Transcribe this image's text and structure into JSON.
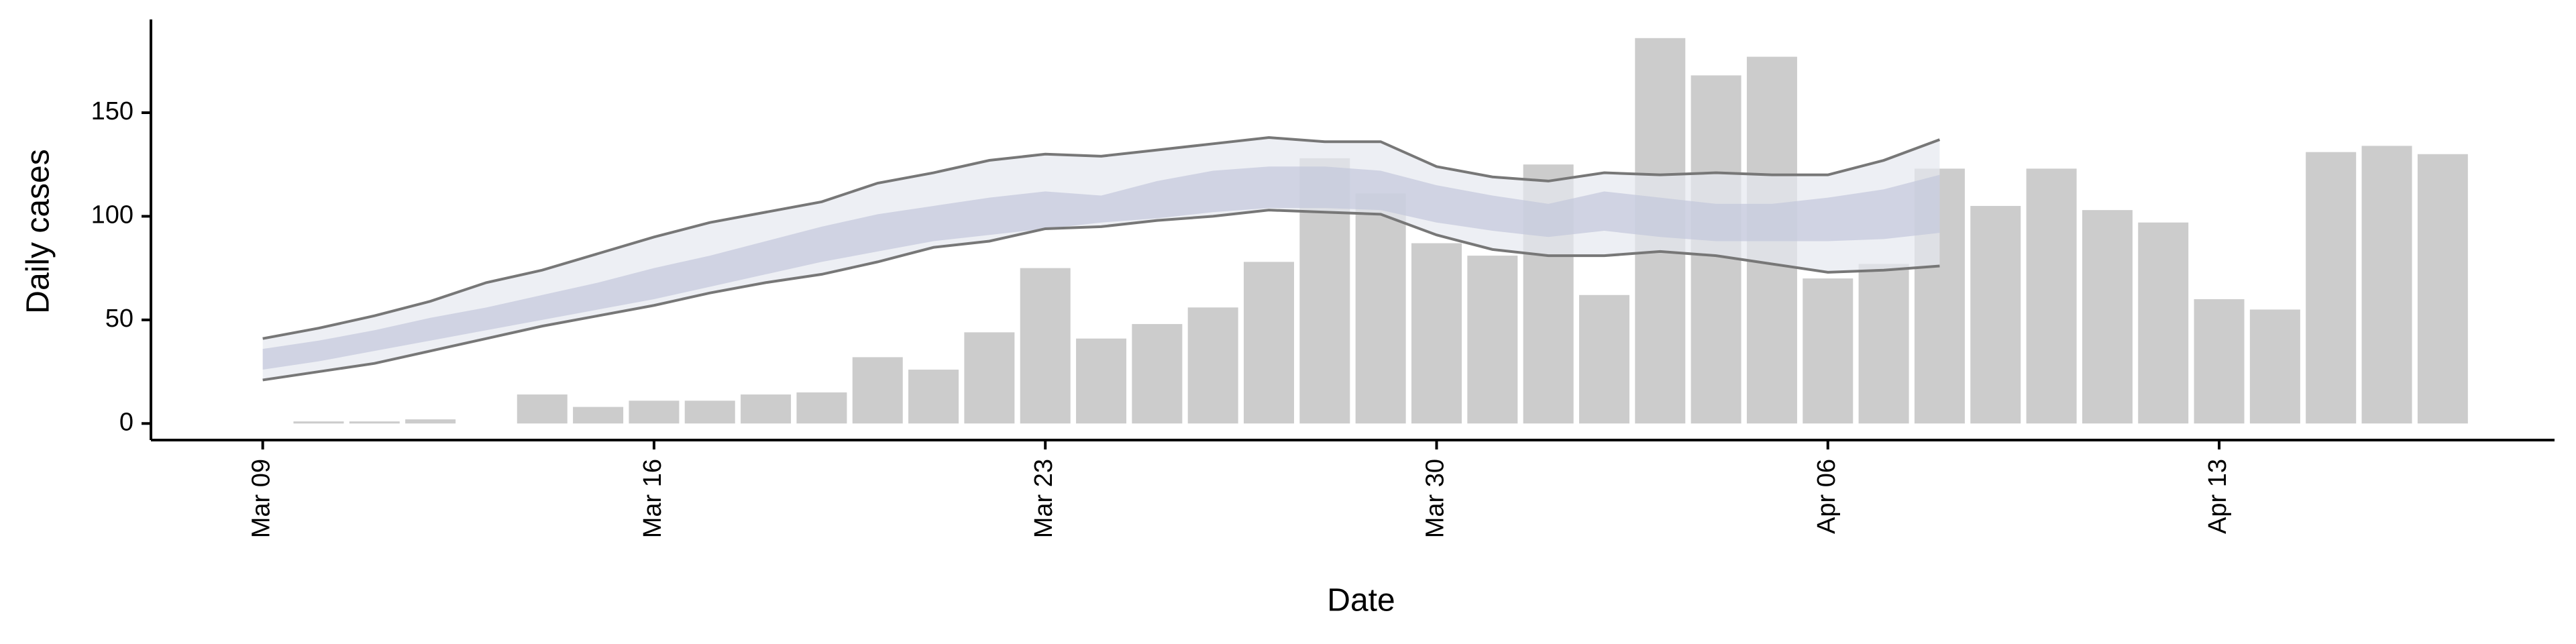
{
  "chart_data": {
    "type": "bar",
    "xlabel": "Date",
    "ylabel": "Daily cases",
    "x": [
      "Mar 10",
      "Mar 11",
      "Mar 12",
      "Mar 14",
      "Mar 15",
      "Mar 16",
      "Mar 17",
      "Mar 18",
      "Mar 19",
      "Mar 20",
      "Mar 21",
      "Mar 22",
      "Mar 23",
      "Mar 24",
      "Mar 25",
      "Mar 26",
      "Mar 27",
      "Mar 28",
      "Mar 29",
      "Mar 30",
      "Mar 31",
      "Apr 01",
      "Apr 02",
      "Apr 03",
      "Apr 04",
      "Apr 05",
      "Apr 06",
      "Apr 07",
      "Apr 08",
      "Apr 09",
      "Apr 10",
      "Apr 11",
      "Apr 12",
      "Apr 13",
      "Apr 14",
      "Apr 15",
      "Apr 16",
      "Apr 17"
    ],
    "series": [
      {
        "color": "#cccccc",
        "values": [
          1,
          1,
          2,
          14,
          8,
          11,
          11,
          14,
          15,
          32,
          26,
          44,
          75,
          41,
          48,
          56,
          78,
          128,
          111,
          87,
          81,
          125,
          62,
          186,
          168,
          177,
          70,
          77,
          123,
          105,
          123,
          103,
          97,
          60,
          55,
          131,
          134,
          130
        ]
      }
    ],
    "bands": {
      "x": [
        "Mar 09",
        "Mar 10",
        "Mar 11",
        "Mar 12",
        "Mar 13",
        "Mar 14",
        "Mar 15",
        "Mar 16",
        "Mar 17",
        "Mar 18",
        "Mar 19",
        "Mar 20",
        "Mar 21",
        "Mar 22",
        "Mar 23",
        "Mar 24",
        "Mar 25",
        "Mar 26",
        "Mar 27",
        "Mar 28",
        "Mar 29",
        "Mar 30",
        "Mar 31",
        "Apr 01",
        "Apr 02",
        "Apr 03",
        "Apr 04",
        "Apr 05",
        "Apr 06",
        "Apr 07",
        "Apr 08"
      ],
      "outer": {
        "color": "#e6e8f0",
        "line_color": "#777777",
        "lower": [
          21,
          25,
          29,
          35,
          41,
          47,
          52,
          57,
          63,
          68,
          72,
          78,
          85,
          88,
          94,
          95,
          98,
          100,
          103,
          102,
          101,
          91,
          84,
          81,
          81,
          83,
          81,
          77,
          73,
          74,
          76
        ],
        "upper": [
          41,
          46,
          52,
          59,
          68,
          74,
          82,
          90,
          97,
          102,
          107,
          116,
          121,
          127,
          130,
          129,
          132,
          135,
          138,
          136,
          136,
          124,
          119,
          117,
          121,
          120,
          121,
          120,
          120,
          127,
          137
        ]
      },
      "inner": {
        "color": "#c3c8dc",
        "lower": [
          26,
          30,
          35,
          40,
          45,
          50,
          55,
          60,
          66,
          72,
          78,
          83,
          88,
          91,
          94,
          97,
          99,
          102,
          104,
          104,
          103,
          97,
          93,
          90,
          93,
          90,
          88,
          88,
          88,
          89,
          92
        ],
        "upper": [
          36,
          40,
          45,
          51,
          56,
          62,
          68,
          75,
          81,
          88,
          95,
          101,
          105,
          109,
          112,
          110,
          117,
          122,
          124,
          124,
          122,
          115,
          110,
          106,
          112,
          109,
          106,
          106,
          109,
          113,
          120
        ]
      }
    },
    "xlim": [
      "Mar 07",
      "Apr 19"
    ],
    "xticks": [
      "Mar 09",
      "Mar 16",
      "Mar 23",
      "Mar 30",
      "Apr 06",
      "Apr 13"
    ],
    "ylim": [
      -8,
      195
    ],
    "yticks": [
      0,
      50,
      100,
      150
    ]
  }
}
